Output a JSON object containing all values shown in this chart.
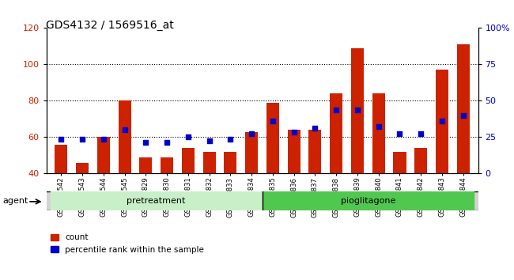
{
  "title": "GDS4132 / 1569516_at",
  "categories": [
    "GSM201542",
    "GSM201543",
    "GSM201544",
    "GSM201545",
    "GSM201829",
    "GSM201830",
    "GSM201831",
    "GSM201832",
    "GSM201833",
    "GSM201834",
    "GSM201835",
    "GSM201836",
    "GSM201837",
    "GSM201838",
    "GSM201839",
    "GSM201840",
    "GSM201841",
    "GSM201842",
    "GSM201843",
    "GSM201844"
  ],
  "count_values": [
    56,
    46,
    60,
    80,
    49,
    49,
    54,
    52,
    52,
    63,
    79,
    64,
    64,
    84,
    109,
    84,
    52,
    54,
    97,
    111
  ],
  "percentile_values": [
    59,
    59,
    59,
    64,
    57,
    57,
    60,
    58,
    59,
    62,
    69,
    63,
    65,
    75,
    75,
    66,
    62,
    62,
    69,
    72
  ],
  "group1_label": "pretreatment",
  "group2_label": "pioglitagone",
  "group1_count": 10,
  "group2_count": 10,
  "group1_color": "#C8F0C8",
  "group2_color": "#50C850",
  "bar_color": "#CC2200",
  "dot_color": "#0000CC",
  "ylim_left": [
    40,
    120
  ],
  "ylim_right": [
    0,
    100
  ],
  "yticks_left": [
    40,
    60,
    80,
    100,
    120
  ],
  "yticks_right": [
    0,
    25,
    50,
    75,
    100
  ],
  "grid_values": [
    60,
    80,
    100
  ],
  "legend_count": "count",
  "legend_pct": "percentile rank within the sample",
  "xlabel_agent": "agent",
  "bg_color": "#D3D3D3",
  "plot_bg": "#FFFFFF",
  "bar_width": 0.6
}
